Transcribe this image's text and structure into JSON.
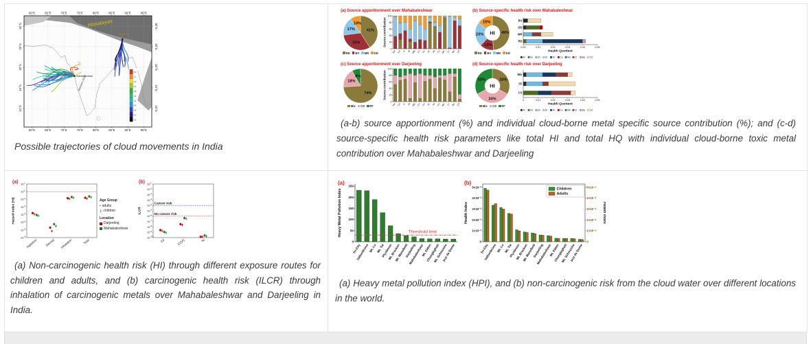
{
  "captions": {
    "map": "Possible trajectories of cloud movements in India",
    "apportionment": "(a-b) source apportionment (%) and individual cloud-borne metal specific source contribution (%); and (c-d) source-specific health risk parameters like total HI and total HQ with individual cloud-borne toxic metal contribution over Mahabaleshwar and Darjeeling",
    "health_risk": "(a) Non-carcinogenic health risk (HI) through different exposure routes for children and adults, and (b) carcinogenic health risk (ILCR) through inhalation of carcinogenic metals over Mahabaleshwar and Darjeeling in India.",
    "hpi": "(a) Heavy metal pollution index (HPI), and (b) non-carcinogenic risk from the cloud water over different locations in the world."
  },
  "chart_data": [
    {
      "id": "trajectory-map",
      "type": "map",
      "lon_ticks": [
        "60°E",
        "65°E",
        "70°E",
        "75°E",
        "80°E",
        "85°E",
        "90°E",
        "95°E"
      ],
      "lat_ticks": [
        "30°N",
        "25°N",
        "20°N",
        "15°N",
        "10°N"
      ],
      "labels": {
        "region": "Himalayas",
        "site1": "Mahabaleshwar",
        "site2": "Darjeeling",
        "coast": "Western Ghat"
      },
      "colorbar": {
        "values": [
          "3.0",
          "2.7",
          "2.4",
          "2.1",
          "1.8",
          "1.5",
          "1.2",
          "0.9",
          "0.6",
          "0.3",
          "0.0"
        ],
        "colors": [
          "#e03020",
          "#f09020",
          "#f0e020",
          "#90d020",
          "#30b030",
          "#30b878",
          "#20b8b8",
          "#3090e0",
          "#2850c8",
          "#281890",
          "#0a0a14"
        ]
      }
    },
    {
      "id": "src-pie-m",
      "type": "pie",
      "title": "(a)  Source apportionment over Mahabaleshwar",
      "labels": [
        "RD",
        "BV",
        "MR",
        "DD"
      ],
      "values": [
        41,
        32,
        17,
        10
      ],
      "value_labels": [
        "41%",
        "32%",
        "17%",
        "10%"
      ],
      "colors": [
        "#8a7a3b",
        "#9e3038",
        "#8cc6e8",
        "#f09a30"
      ]
    },
    {
      "id": "src-stack-m",
      "type": "vstack",
      "ylabel": "Source contribution",
      "yticks": [
        0,
        20,
        40,
        60,
        80,
        100
      ],
      "ylim": [
        0,
        100
      ],
      "categories": [
        "Na",
        "Ca",
        "K",
        "Al",
        "Mg",
        "Fe",
        "Zn",
        "Sr",
        "Ni",
        "Cu",
        "Mn",
        "Cr",
        "Ba",
        "Cd"
      ],
      "series": [
        {
          "name": "RD",
          "color": "#8a7a3b",
          "values": [
            0,
            28,
            0,
            22,
            0,
            0,
            0,
            78,
            68,
            0,
            95,
            0,
            0,
            0
          ]
        },
        {
          "name": "BV",
          "color": "#9e3038",
          "values": [
            38,
            18,
            55,
            8,
            20,
            28,
            25,
            4,
            0,
            50,
            0,
            3,
            85,
            70
          ]
        },
        {
          "name": "MR",
          "color": "#8cc6e8",
          "values": [
            58,
            32,
            25,
            30,
            65,
            45,
            35,
            13,
            12,
            20,
            3,
            95,
            10,
            20
          ]
        },
        {
          "name": "DD",
          "color": "#f09a30",
          "values": [
            4,
            22,
            20,
            40,
            15,
            27,
            40,
            5,
            20,
            30,
            2,
            2,
            5,
            10
          ]
        }
      ]
    },
    {
      "id": "risk-donut-m",
      "type": "pie",
      "inner": 0.45,
      "center_label": "HI",
      "title": "(b)  Source-specific health risk over Mahabaleshwar",
      "labels": [
        "RD",
        "BV",
        "MR",
        "DD"
      ],
      "values": [
        49,
        13,
        23,
        15
      ],
      "value_labels": [
        "49%",
        "13%",
        "23%",
        "15%"
      ],
      "colors": [
        "#8a7a3b",
        "#9e3038",
        "#8cc6e8",
        "#f09a30"
      ]
    },
    {
      "id": "risk-hbar-m",
      "type": "hstack",
      "xlabel": "Health Quotient",
      "xticks": [
        "0.00",
        "0.01",
        "0.02",
        "0.03",
        "0.04",
        "0.05"
      ],
      "xmax": 0.05,
      "rows": [
        {
          "name": "BV",
          "segments": [
            [
              "Al",
              0.003
            ],
            [
              "Cd",
              0.009
            ]
          ]
        },
        {
          "name": "DD",
          "segments": [
            [
              "Al",
              0.002
            ],
            [
              "Fe",
              0.009
            ],
            [
              "Cu",
              0.002
            ]
          ]
        },
        {
          "name": "MR",
          "segments": [
            [
              "Zn",
              0.006
            ],
            [
              "Cr",
              0.006
            ],
            [
              "Cd",
              0.008
            ]
          ]
        },
        {
          "name": "RD",
          "segments": [
            [
              "Fe",
              0.002
            ],
            [
              "Zn",
              0.011
            ],
            [
              "Ni",
              0.027
            ],
            [
              "Ba",
              0.002
            ]
          ]
        }
      ],
      "legend": [
        "Al",
        "Fe",
        "Zn",
        "Sr",
        "Ni",
        "Cu",
        "Mn",
        "Cr",
        "Ba",
        "Cd"
      ],
      "metal_colors": {
        "Al": "#262626",
        "Fe": "#4e6b22",
        "Zn": "#6fb8e0",
        "Sr": "#b9cde4",
        "Ni": "#17375d",
        "Cu": "#c00000",
        "Mn": "#1f6b78",
        "Cr": "#8c3a36",
        "Ba": "#d98cb8",
        "Cd": "#f2dcb0"
      }
    },
    {
      "id": "src-pie-d",
      "type": "pie",
      "title": "(c)  Source apportionment over Darjeeling",
      "labels": [
        "Mix",
        "CS",
        "FF"
      ],
      "values": [
        74,
        18,
        8
      ],
      "value_labels": [
        "74%",
        "18%",
        "8%"
      ],
      "colors": [
        "#8a7a3b",
        "#e8a7ad",
        "#1f8a35"
      ]
    },
    {
      "id": "src-stack-d",
      "type": "vstack",
      "ylabel": "Source contribution",
      "yticks": [
        0,
        20,
        40,
        60,
        80,
        100
      ],
      "ylim": [
        0,
        100
      ],
      "categories": [
        "Na",
        "Ca",
        "K",
        "Al",
        "Mg",
        "Fe",
        "Zn",
        "Sr",
        "Ni",
        "Cu",
        "Mn",
        "Cr",
        "Ba",
        "Cd"
      ],
      "series": [
        {
          "name": "Mix",
          "color": "#8a7a3b",
          "values": [
            52,
            65,
            68,
            10,
            58,
            10,
            62,
            68,
            40,
            72,
            66,
            30,
            75,
            8
          ]
        },
        {
          "name": "CS",
          "color": "#e8a7ad",
          "values": [
            28,
            10,
            12,
            75,
            22,
            75,
            18,
            12,
            35,
            8,
            14,
            55,
            10,
            14
          ]
        },
        {
          "name": "FF",
          "color": "#1f8a35",
          "values": [
            20,
            25,
            20,
            15,
            20,
            15,
            20,
            20,
            25,
            20,
            20,
            15,
            15,
            78
          ]
        }
      ]
    },
    {
      "id": "risk-donut-d",
      "type": "pie",
      "inner": 0.45,
      "center_label": "HI",
      "title": "(d)  Source-specific health risk over Darjeeling",
      "labels": [
        "Mix",
        "CS",
        "FF"
      ],
      "values": [
        33,
        34,
        33
      ],
      "value_labels": [
        "33%",
        "34%",
        "33%"
      ],
      "colors": [
        "#8a7a3b",
        "#e8a7ad",
        "#1f8a35"
      ]
    },
    {
      "id": "risk-hbar-d",
      "type": "hstack",
      "xlabel": "Health Quotient",
      "xticks": [
        "0",
        "0.01",
        "0.02",
        "0.03",
        "0.04",
        "0.05"
      ],
      "xmax": 0.05,
      "rows": [
        {
          "name": "Mix",
          "segments": [
            [
              "Al",
              0.002
            ],
            [
              "Zn",
              0.011
            ],
            [
              "Ni",
              0.009
            ],
            [
              "Cr",
              0.008
            ],
            [
              "Cd",
              0.003
            ]
          ]
        },
        {
          "name": "FF",
          "segments": [
            [
              "Al",
              0.002
            ],
            [
              "Zn",
              0.011
            ],
            [
              "Cr",
              0.004
            ],
            [
              "Cd",
              0.018
            ]
          ]
        },
        {
          "name": "CS",
          "segments": [
            [
              "Fe",
              0.01
            ],
            [
              "Ni",
              0.009
            ],
            [
              "Cr",
              0.013
            ],
            [
              "Cd",
              0.003
            ]
          ]
        }
      ],
      "legend": [
        "Al",
        "Fe",
        "Zn",
        "Sr",
        "Ni",
        "Cu",
        "Mn",
        "Cr",
        "Ba",
        "Cd"
      ],
      "metal_colors": {
        "Al": "#262626",
        "Fe": "#4e6b22",
        "Zn": "#6fb8e0",
        "Sr": "#b9cde4",
        "Ni": "#17375d",
        "Cu": "#c00000",
        "Mn": "#1f6b78",
        "Cr": "#8c3a36",
        "Ba": "#d98cb8",
        "Cd": "#f2dcb0"
      }
    },
    {
      "id": "hi-scatter",
      "type": "scatter",
      "panel": "(a)",
      "ylabel": "Hazard Index (HI)",
      "log_top": 1,
      "log_bottom": -6,
      "categories": [
        "Ingestion",
        "Dermal",
        "Inhalation",
        "Total"
      ],
      "ref_lines": [
        {
          "log": 0,
          "color": "#e03030",
          "label": ""
        }
      ],
      "series": [
        {
          "location": "Darjeeling",
          "age": "adults",
          "marker": "square",
          "color": "#c00000",
          "values": [
            -2.8,
            -4.7,
            -0.85,
            -0.8
          ]
        },
        {
          "location": "Darjeeling",
          "age": "children",
          "marker": "plus",
          "color": "#c00000",
          "values": [
            -2.95,
            -5.15,
            -0.95,
            -0.9
          ]
        },
        {
          "location": "Mahabaleshwar",
          "age": "adults",
          "marker": "square",
          "color": "#1f7a1f",
          "values": [
            -3.05,
            -4.25,
            -0.7,
            -0.62
          ]
        },
        {
          "location": "Mahabaleshwar",
          "age": "children",
          "marker": "plus",
          "color": "#1f7a1f",
          "values": [
            -3.15,
            -4.5,
            -0.8,
            -0.72
          ]
        }
      ],
      "legend": {
        "age_title": "Age Group",
        "ages": [
          {
            "label": "adults",
            "marker": "square"
          },
          {
            "label": "children",
            "marker": "plus"
          }
        ],
        "loc_title": "Location",
        "locations": [
          {
            "label": "Darjeeling",
            "color": "#c00000"
          },
          {
            "label": "Mahabaleshwar",
            "color": "#1f7a1f"
          }
        ]
      }
    },
    {
      "id": "ilcr-scatter",
      "type": "scatter",
      "panel": "(b)",
      "ylabel": "ILCR",
      "log_top": 0,
      "log_bottom": -10,
      "categories": [
        "Cd",
        "Cr(VI)",
        "Ni"
      ],
      "ref_lines": [
        {
          "log": -4,
          "color": "#3050e0",
          "label": "Cancer risk"
        },
        {
          "log": -6,
          "color": "#e03030",
          "label": "No cancer risk"
        }
      ],
      "series": [
        {
          "location": "Darjeeling",
          "age": "adults",
          "marker": "square",
          "color": "#c00000",
          "values": [
            -8.6,
            -7.5,
            -9.9
          ]
        },
        {
          "location": "Darjeeling",
          "age": "children",
          "marker": "plus",
          "color": "#c00000",
          "values": [
            -8.75,
            -7.65,
            -9.95
          ]
        },
        {
          "location": "Mahabaleshwar",
          "age": "adults",
          "marker": "square",
          "color": "#1f7a1f",
          "values": [
            -8.95,
            -6.35,
            -9.6
          ]
        },
        {
          "location": "Mahabaleshwar",
          "age": "children",
          "marker": "plus",
          "color": "#1f7a1f",
          "values": [
            -9.1,
            -6.5,
            -9.75
          ]
        }
      ]
    },
    {
      "id": "hpi-bar",
      "type": "bar",
      "panel": "(a)",
      "ylabel": "Heavy Metal Pollution Index",
      "yticks": [
        0,
        50,
        100,
        150,
        200,
        250
      ],
      "ylim": [
        0,
        260
      ],
      "categories": [
        "Tri-City",
        "Vallombrosa",
        "Mt. Lu",
        "Mt. Tai",
        "Plynlimon",
        "Mt. Brocken",
        "Mt. Mansfield",
        "Darjeeling",
        "Mahabaleshwar",
        "Mt. Elden",
        "Changlaghatt",
        "Mt. Schmucke",
        "puy de Dome"
      ],
      "values": [
        232,
        230,
        190,
        131,
        72,
        36,
        27,
        22,
        14,
        13,
        13,
        12,
        12
      ],
      "bar_color": "#2e7d2e",
      "threshold": {
        "value": 30,
        "label": "Threshold limit",
        "color": "#e03838"
      }
    },
    {
      "id": "hix-bar",
      "type": "gbar",
      "panel": "(b)",
      "ylabel_left": "Health Index",
      "ylabel_right": "Health Index",
      "yticks_left": [
        "0",
        "1×10⁻²",
        "2×10⁻²",
        "3×10⁻²",
        "4×10⁻²",
        "5×10⁻²"
      ],
      "yticks_right": [
        "0",
        "1×10⁻⁴",
        "2×10⁻⁴",
        "3×10⁻⁴",
        "4×10⁻⁴",
        "5×10⁻⁴"
      ],
      "ymax": 5.3,
      "categories": [
        "Tri-City",
        "Vallombrosa",
        "Mt. Lu",
        "Mt. Tai",
        "Plynlimon",
        "Mt. Brocken",
        "Mt. Mansfield",
        "Darjeeling",
        "Mahabaleshwar",
        "Mt. Elden",
        "Changlaghatt",
        "Mt. Schmucke",
        "puy de Dome"
      ],
      "series": [
        {
          "name": "Children",
          "color": "#2e9432",
          "values": [
            4.9,
            3.35,
            3.15,
            2.6,
            1.1,
            0.9,
            0.8,
            0.62,
            0.55,
            0.32,
            0.3,
            0.3,
            0.22
          ]
        },
        {
          "name": "Adults",
          "color": "#b4641e",
          "values": [
            4.75,
            3.5,
            3.0,
            2.55,
            1.0,
            0.85,
            0.75,
            0.6,
            0.52,
            0.3,
            0.3,
            0.28,
            0.2
          ]
        }
      ]
    }
  ]
}
